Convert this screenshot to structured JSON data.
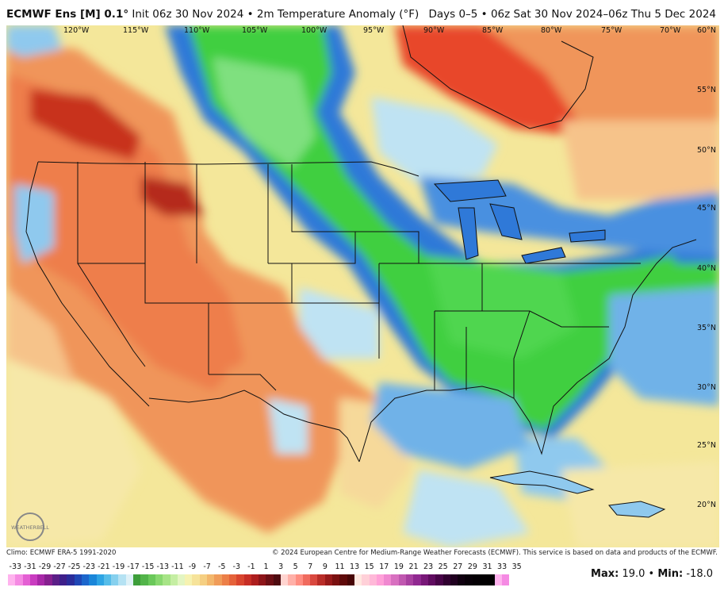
{
  "header": {
    "model": "ECMWF Ens [M] 0.1",
    "degree_mark": "°",
    "init_text": "Init 06z 30 Nov 2024",
    "bullet": "•",
    "variable": "2m Temperature Anomaly (°F)",
    "valid_text": "Days 0–5 • 06z Sat 30 Nov 2024–06z Thu 5 Dec 2024"
  },
  "map": {
    "longitude_labels": [
      "120°W",
      "115°W",
      "110°W",
      "105°W",
      "100°W",
      "95°W",
      "90°W",
      "85°W",
      "80°W",
      "75°W",
      "70°W"
    ],
    "latitude_labels": [
      "60°N",
      "55°N",
      "50°N",
      "45°N",
      "40°N",
      "35°N",
      "30°N",
      "25°N",
      "20°N"
    ],
    "colors": {
      "warm_strong": "#e8462a",
      "warm": "#f0955a",
      "warm_light": "#f6c38a",
      "neutral": "#f4e79a",
      "cool_light": "#bfe3f3",
      "cool": "#6fb2e8",
      "cool_blue": "#2f79d8",
      "green": "#3fcf3f",
      "green_light": "#7fe07f",
      "dark_red": "#a8201a",
      "ocean_blue": "#8fc9ee"
    },
    "logo_text": "WEATHERBELL"
  },
  "credits": {
    "climo": "Climo: ECMWF ERA-5 1991-2020",
    "copyright": "© 2024 European Centre for Medium-Range Weather Forecasts (ECMWF). This service is based on data and products of the ECMWF."
  },
  "legend": {
    "labels": [
      "-33",
      "-31",
      "-29",
      "-27",
      "-25",
      "-23",
      "-21",
      "-19",
      "-17",
      "-15",
      "-13",
      "-11",
      "-9",
      "-7",
      "-5",
      "-3",
      "-1",
      "1",
      "3",
      "5",
      "7",
      "9",
      "11",
      "13",
      "15",
      "17",
      "19",
      "21",
      "23",
      "25",
      "27",
      "29",
      "31",
      "33",
      "35"
    ],
    "colors": [
      "#ffb3ee",
      "#f58ae3",
      "#e45fd3",
      "#c93cc0",
      "#a828a8",
      "#86208f",
      "#5b1f87",
      "#3e1f8a",
      "#2a2c9a",
      "#1f47b5",
      "#1c66cc",
      "#1a86d9",
      "#2ea4e4",
      "#56bde9",
      "#86d0ee",
      "#b5e2f3",
      "#dff1f7",
      "#3d9e3a",
      "#52b44a",
      "#6ac85a",
      "#88d86f",
      "#a7e487",
      "#c5eea3",
      "#e3f5c2",
      "#f6f2b1",
      "#f6e39a",
      "#f5cf82",
      "#f3b76c",
      "#f09c59",
      "#ec7f48",
      "#e5623a",
      "#d9452e",
      "#c72e25",
      "#ad1e1e",
      "#8d1519",
      "#6c0f15",
      "#4e0b10",
      "#ffd4d0",
      "#ffb0a8",
      "#ff8e82",
      "#f06b5e",
      "#d9483f",
      "#b92d28",
      "#981a1a",
      "#7a1010",
      "#5f0a0a",
      "#480606",
      "#ffe8e0",
      "#ffd0d8",
      "#ffb8d8",
      "#ffa0d8",
      "#f088d0",
      "#d870c0",
      "#c058b0",
      "#a840a0",
      "#902890",
      "#781878",
      "#600c60",
      "#480448",
      "#300030",
      "#200020",
      "#100010",
      "#080008",
      "#040004",
      "#020002",
      "#010001"
    ],
    "max_label": "Max:",
    "max_value": "19.0",
    "sep": "•",
    "min_label": "Min:",
    "min_value": "-18.0"
  }
}
